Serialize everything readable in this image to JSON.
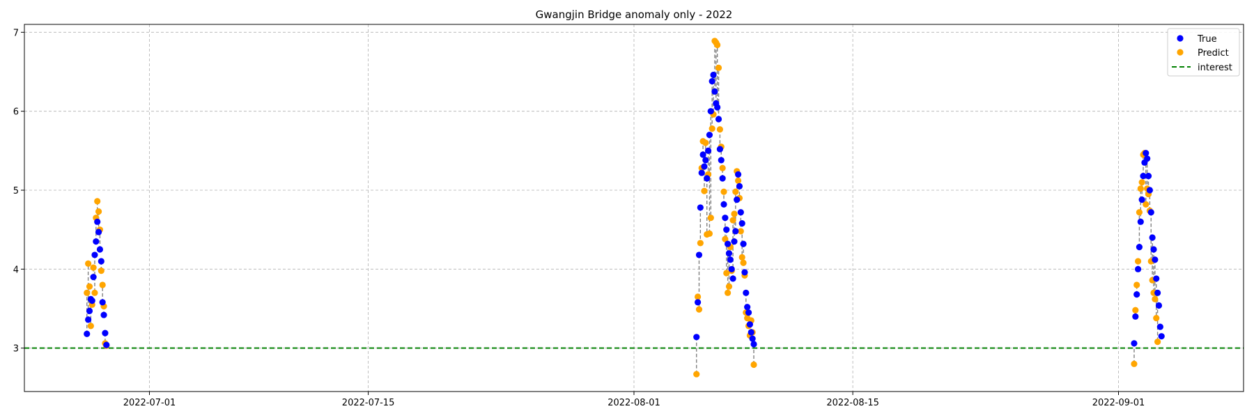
{
  "chart_data": {
    "type": "scatter",
    "title": "Gwangjin Bridge anomaly only - 2022",
    "xlabel": "",
    "ylabel": "",
    "xlim": [
      "2022-06-23",
      "2022-09-09"
    ],
    "ylim": [
      2.45,
      7.1
    ],
    "x_ticks": [
      "2022-07-01",
      "2022-07-15",
      "2022-08-01",
      "2022-08-15",
      "2022-09-01"
    ],
    "y_ticks": [
      3,
      4,
      5,
      6,
      7
    ],
    "grid": true,
    "legend": {
      "position": "top-right",
      "entries": [
        "True",
        "Predict",
        "interest"
      ]
    },
    "colors": {
      "true": "#0000ff",
      "predict": "#ffa500",
      "interest": "#008000",
      "connector": "#808080"
    },
    "interest_level": 3.0,
    "series": [
      {
        "name": "True",
        "points": [
          [
            "2022-06-27T00:00",
            3.18
          ],
          [
            "2022-06-27T02:00",
            3.36
          ],
          [
            "2022-06-27T04:00",
            3.47
          ],
          [
            "2022-06-27T06:00",
            3.62
          ],
          [
            "2022-06-27T08:00",
            3.6
          ],
          [
            "2022-06-27T10:00",
            3.9
          ],
          [
            "2022-06-27T12:00",
            4.18
          ],
          [
            "2022-06-27T14:00",
            4.35
          ],
          [
            "2022-06-27T16:00",
            4.6
          ],
          [
            "2022-06-27T18:00",
            4.47
          ],
          [
            "2022-06-27T20:00",
            4.25
          ],
          [
            "2022-06-27T22:00",
            4.1
          ],
          [
            "2022-06-28T00:00",
            3.58
          ],
          [
            "2022-06-28T02:00",
            3.42
          ],
          [
            "2022-06-28T04:00",
            3.19
          ],
          [
            "2022-06-28T06:00",
            3.04
          ],
          [
            "2022-08-05T00:00",
            3.14
          ],
          [
            "2022-08-05T02:00",
            3.58
          ],
          [
            "2022-08-05T04:00",
            4.18
          ],
          [
            "2022-08-05T06:00",
            4.78
          ],
          [
            "2022-08-05T08:00",
            5.22
          ],
          [
            "2022-08-05T10:00",
            5.45
          ],
          [
            "2022-08-05T12:00",
            5.3
          ],
          [
            "2022-08-05T14:00",
            5.38
          ],
          [
            "2022-08-05T16:00",
            5.15
          ],
          [
            "2022-08-05T18:00",
            5.5
          ],
          [
            "2022-08-05T20:00",
            5.7
          ],
          [
            "2022-08-05T22:00",
            6.0
          ],
          [
            "2022-08-06T00:00",
            6.38
          ],
          [
            "2022-08-06T02:00",
            6.46
          ],
          [
            "2022-08-06T04:00",
            6.25
          ],
          [
            "2022-08-06T06:00",
            6.1
          ],
          [
            "2022-08-06T08:00",
            6.05
          ],
          [
            "2022-08-06T10:00",
            5.9
          ],
          [
            "2022-08-06T12:00",
            5.52
          ],
          [
            "2022-08-06T14:00",
            5.38
          ],
          [
            "2022-08-06T16:00",
            5.15
          ],
          [
            "2022-08-06T18:00",
            4.82
          ],
          [
            "2022-08-06T20:00",
            4.65
          ],
          [
            "2022-08-06T22:00",
            4.5
          ],
          [
            "2022-08-07T00:00",
            4.32
          ],
          [
            "2022-08-07T02:00",
            4.2
          ],
          [
            "2022-08-07T04:00",
            4.12
          ],
          [
            "2022-08-07T06:00",
            4.0
          ],
          [
            "2022-08-07T08:00",
            3.88
          ],
          [
            "2022-08-07T10:00",
            4.35
          ],
          [
            "2022-08-07T12:00",
            4.48
          ],
          [
            "2022-08-07T14:00",
            4.88
          ],
          [
            "2022-08-07T16:00",
            5.2
          ],
          [
            "2022-08-07T18:00",
            5.05
          ],
          [
            "2022-08-07T20:00",
            4.72
          ],
          [
            "2022-08-07T22:00",
            4.58
          ],
          [
            "2022-08-08T00:00",
            4.32
          ],
          [
            "2022-08-08T02:00",
            3.96
          ],
          [
            "2022-08-08T04:00",
            3.7
          ],
          [
            "2022-08-08T06:00",
            3.52
          ],
          [
            "2022-08-08T08:00",
            3.45
          ],
          [
            "2022-08-08T10:00",
            3.3
          ],
          [
            "2022-08-08T12:00",
            3.2
          ],
          [
            "2022-08-08T14:00",
            3.12
          ],
          [
            "2022-08-08T16:00",
            3.05
          ],
          [
            "2022-09-02T00:00",
            3.06
          ],
          [
            "2022-09-02T02:00",
            3.4
          ],
          [
            "2022-09-02T04:00",
            3.68
          ],
          [
            "2022-09-02T06:00",
            4.0
          ],
          [
            "2022-09-02T08:00",
            4.28
          ],
          [
            "2022-09-02T10:00",
            4.6
          ],
          [
            "2022-09-02T12:00",
            4.88
          ],
          [
            "2022-09-02T14:00",
            5.18
          ],
          [
            "2022-09-02T16:00",
            5.35
          ],
          [
            "2022-09-02T18:00",
            5.47
          ],
          [
            "2022-09-02T20:00",
            5.4
          ],
          [
            "2022-09-02T22:00",
            5.18
          ],
          [
            "2022-09-03T00:00",
            5.0
          ],
          [
            "2022-09-03T02:00",
            4.72
          ],
          [
            "2022-09-03T04:00",
            4.4
          ],
          [
            "2022-09-03T06:00",
            4.25
          ],
          [
            "2022-09-03T08:00",
            4.12
          ],
          [
            "2022-09-03T10:00",
            3.88
          ],
          [
            "2022-09-03T12:00",
            3.7
          ],
          [
            "2022-09-03T14:00",
            3.54
          ],
          [
            "2022-09-03T16:00",
            3.27
          ],
          [
            "2022-09-03T18:00",
            3.15
          ]
        ]
      },
      {
        "name": "Predict",
        "points": [
          [
            "2022-06-27T00:00",
            3.7
          ],
          [
            "2022-06-27T02:00",
            4.07
          ],
          [
            "2022-06-27T04:00",
            3.78
          ],
          [
            "2022-06-27T06:00",
            3.28
          ],
          [
            "2022-06-27T08:00",
            3.55
          ],
          [
            "2022-06-27T10:00",
            4.02
          ],
          [
            "2022-06-27T12:00",
            3.7
          ],
          [
            "2022-06-27T14:00",
            4.65
          ],
          [
            "2022-06-27T16:00",
            4.86
          ],
          [
            "2022-06-27T18:00",
            4.73
          ],
          [
            "2022-06-27T20:00",
            4.5
          ],
          [
            "2022-06-27T22:00",
            3.98
          ],
          [
            "2022-06-28T00:00",
            3.8
          ],
          [
            "2022-06-28T02:00",
            3.53
          ],
          [
            "2022-06-28T04:00",
            3.06
          ],
          [
            "2022-06-28T06:00",
            3.03
          ],
          [
            "2022-08-05T00:00",
            2.67
          ],
          [
            "2022-08-05T02:00",
            3.65
          ],
          [
            "2022-08-05T04:00",
            3.49
          ],
          [
            "2022-08-05T06:00",
            4.33
          ],
          [
            "2022-08-05T08:00",
            5.28
          ],
          [
            "2022-08-05T10:00",
            5.62
          ],
          [
            "2022-08-05T12:00",
            4.99
          ],
          [
            "2022-08-05T14:00",
            5.6
          ],
          [
            "2022-08-05T16:00",
            4.44
          ],
          [
            "2022-08-05T18:00",
            5.2
          ],
          [
            "2022-08-05T20:00",
            4.45
          ],
          [
            "2022-08-05T22:00",
            4.65
          ],
          [
            "2022-08-06T00:00",
            5.78
          ],
          [
            "2022-08-06T02:00",
            5.96
          ],
          [
            "2022-08-06T04:00",
            6.89
          ],
          [
            "2022-08-06T06:00",
            6.87
          ],
          [
            "2022-08-06T08:00",
            6.84
          ],
          [
            "2022-08-06T10:00",
            6.55
          ],
          [
            "2022-08-06T12:00",
            5.77
          ],
          [
            "2022-08-06T14:00",
            5.55
          ],
          [
            "2022-08-06T16:00",
            5.28
          ],
          [
            "2022-08-06T18:00",
            4.98
          ],
          [
            "2022-08-06T20:00",
            4.38
          ],
          [
            "2022-08-06T22:00",
            3.95
          ],
          [
            "2022-08-07T00:00",
            3.7
          ],
          [
            "2022-08-07T02:00",
            3.78
          ],
          [
            "2022-08-07T04:00",
            4.28
          ],
          [
            "2022-08-07T06:00",
            3.98
          ],
          [
            "2022-08-07T08:00",
            4.62
          ],
          [
            "2022-08-07T10:00",
            4.7
          ],
          [
            "2022-08-07T12:00",
            4.98
          ],
          [
            "2022-08-07T14:00",
            5.24
          ],
          [
            "2022-08-07T16:00",
            5.12
          ],
          [
            "2022-08-07T18:00",
            4.9
          ],
          [
            "2022-08-07T20:00",
            4.48
          ],
          [
            "2022-08-07T22:00",
            4.15
          ],
          [
            "2022-08-08T00:00",
            4.08
          ],
          [
            "2022-08-08T02:00",
            3.92
          ],
          [
            "2022-08-08T04:00",
            3.45
          ],
          [
            "2022-08-08T06:00",
            3.38
          ],
          [
            "2022-08-08T08:00",
            3.28
          ],
          [
            "2022-08-08T10:00",
            3.16
          ],
          [
            "2022-08-08T12:00",
            3.35
          ],
          [
            "2022-08-08T14:00",
            3.2
          ],
          [
            "2022-08-08T16:00",
            2.79
          ],
          [
            "2022-09-02T00:00",
            2.8
          ],
          [
            "2022-09-02T02:00",
            3.48
          ],
          [
            "2022-09-02T04:00",
            3.8
          ],
          [
            "2022-09-02T06:00",
            4.1
          ],
          [
            "2022-09-02T08:00",
            4.72
          ],
          [
            "2022-09-02T10:00",
            5.02
          ],
          [
            "2022-09-02T12:00",
            5.1
          ],
          [
            "2022-09-02T14:00",
            5.45
          ],
          [
            "2022-09-02T16:00",
            5.47
          ],
          [
            "2022-09-02T18:00",
            4.82
          ],
          [
            "2022-09-02T20:00",
            5.02
          ],
          [
            "2022-09-02T22:00",
            4.95
          ],
          [
            "2022-09-03T00:00",
            4.74
          ],
          [
            "2022-09-03T02:00",
            4.1
          ],
          [
            "2022-09-03T04:00",
            3.86
          ],
          [
            "2022-09-03T06:00",
            3.7
          ],
          [
            "2022-09-03T08:00",
            3.62
          ],
          [
            "2022-09-03T10:00",
            3.38
          ],
          [
            "2022-09-03T12:00",
            3.08
          ]
        ]
      }
    ]
  }
}
